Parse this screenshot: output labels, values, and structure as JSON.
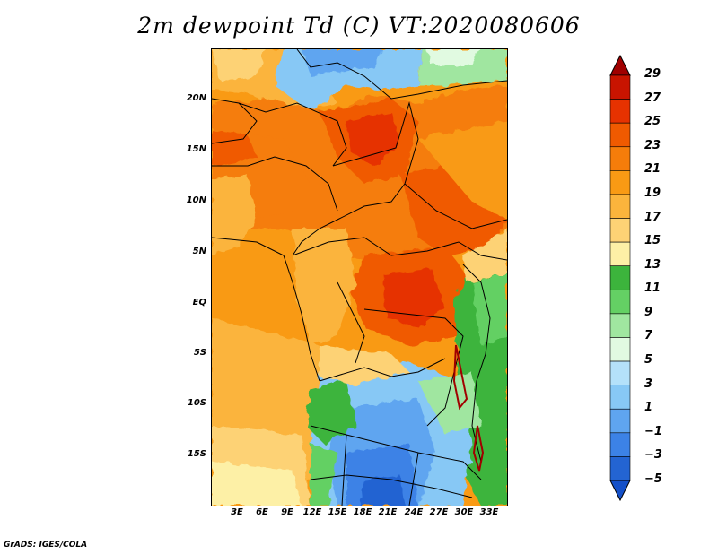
{
  "title": "2m dewpoint Td (C) VT:2020080606",
  "footer": "GrADS: IGES/COLA",
  "map": {
    "lat_labels": [
      "20N",
      "15N",
      "10N",
      "5N",
      "EQ",
      "5S",
      "10S",
      "15S"
    ],
    "lon_labels": [
      "3E",
      "6E",
      "9E",
      "12E",
      "15E",
      "18E",
      "21E",
      "24E",
      "27E",
      "30E",
      "33E"
    ]
  },
  "colorbar": {
    "labels": [
      "29",
      "27",
      "25",
      "23",
      "21",
      "19",
      "17",
      "15",
      "13",
      "11",
      "9",
      "7",
      "5",
      "3",
      "1",
      "−1",
      "−3",
      "−5"
    ],
    "colors": [
      "#a00000",
      "#c81400",
      "#e63200",
      "#f05a00",
      "#f57d0a",
      "#f99a14",
      "#fbb43c",
      "#fdd275",
      "#fdf0a6",
      "#3cb43c",
      "#64d064",
      "#a0e6a0",
      "#e1fae1",
      "#b4e1fa",
      "#87c8f5",
      "#5fa5f0",
      "#3c82e6",
      "#2364d2",
      "#1450c8"
    ]
  }
}
